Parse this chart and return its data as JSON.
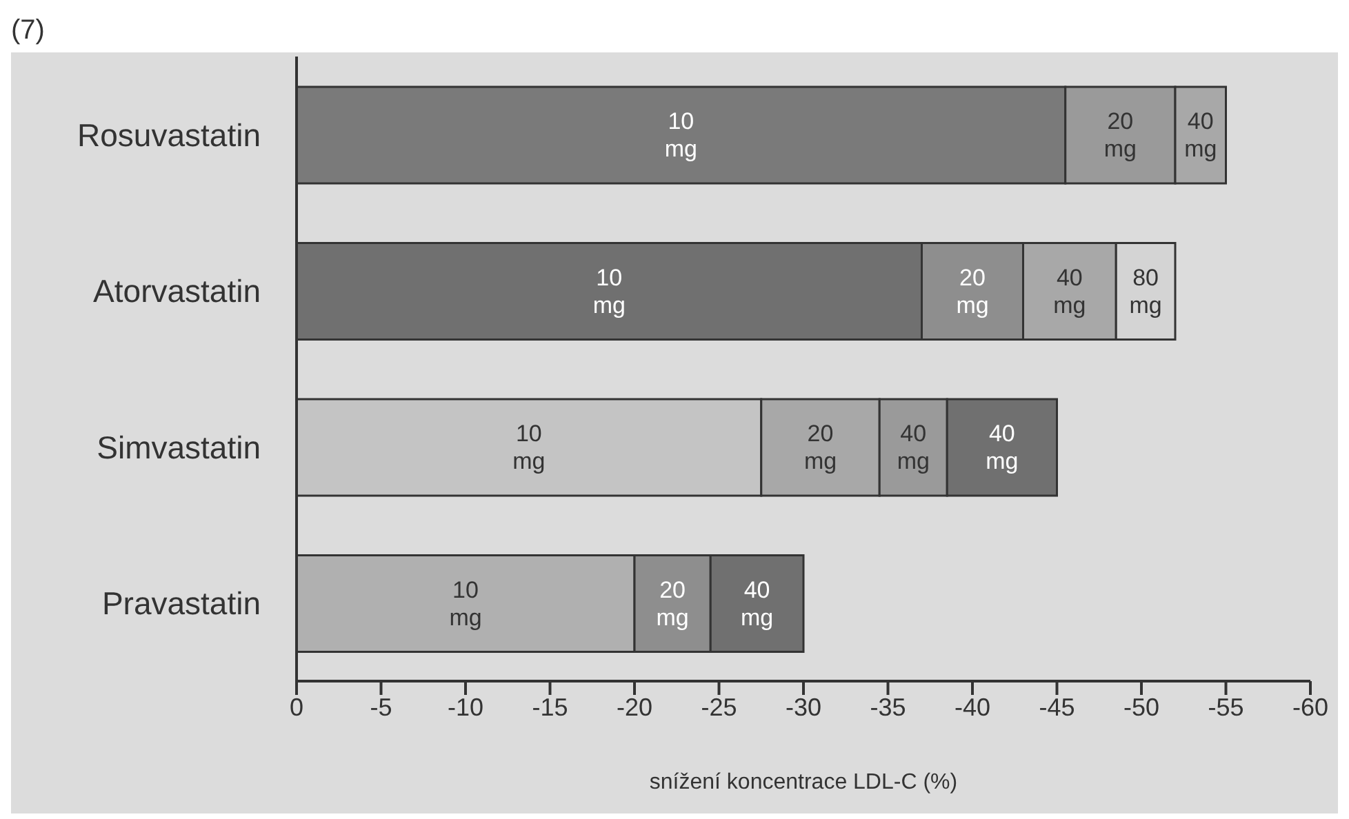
{
  "chart_data": {
    "type": "bar",
    "orientation": "horizontal",
    "stacked": true,
    "xlabel": "snížení koncentrace LDL-C (%)",
    "categories": [
      "Rosuvastatin",
      "Atorvastatin",
      "Simvastatin",
      "Pravastatin"
    ],
    "series": [
      {
        "values": [
          -45.5,
          -37,
          -27.5,
          -20
        ],
        "colors": [
          "#7a7a7a",
          "#707070",
          "#c4c4c4",
          "#b0b0b0"
        ]
      },
      {
        "values": [
          -6.5,
          -6,
          -7,
          -4.5
        ],
        "colors": [
          "#9a9a9a",
          "#8e8e8e",
          "#a8a8a8",
          "#8e8e8e"
        ]
      },
      {
        "values": [
          -3,
          -5.5,
          -4,
          -5.5
        ],
        "colors": [
          "#a8a8a8",
          "#a8a8a8",
          "#9a9a9a",
          "#707070"
        ]
      },
      {
        "values": [
          null,
          -3.5,
          -6.5,
          null
        ],
        "colors": [
          "#d4d4d4",
          "#d4d4d4",
          "#707070",
          "#707070"
        ]
      }
    ],
    "annotations": [
      "(7)",
      "10 mg",
      "10 mg",
      "10 mg",
      "10 mg",
      {
        "text": "20 mg",
        "x": -52,
        "y": "Rosuvastatin"
      },
      {
        "text": "40 mg",
        "x": -55,
        "y": "Rosuvastatin"
      },
      {
        "text": "20 mg",
        "x": -43,
        "y": "Atorvastatin"
      },
      {
        "text": "40 mg",
        "x": -48.5,
        "y": "Atorvastatin"
      },
      {
        "text": "80 mg",
        "x": -52,
        "y": "Atorvastatin"
      },
      {
        "text": "20 mg",
        "x": -34.5,
        "y": "Simvastatin"
      },
      {
        "text": "40 mg",
        "x": -38.5,
        "y": "Simvastatin"
      },
      {
        "text": "40 mg",
        "x": -45,
        "y": "Simvastatin"
      },
      {
        "text": "20 mg",
        "x": -24.5,
        "y": "Pravastatin"
      },
      {
        "text": "40 mg",
        "x": -30,
        "y": "Pravastatin"
      }
    ],
    "xlim": [
      0,
      -60
    ],
    "xticks": [
      0,
      -5,
      -10,
      -15,
      -20,
      -25,
      -30,
      -35,
      -40,
      -45,
      -50,
      -55,
      -60
    ],
    "grid": false,
    "legend": false
  }
}
